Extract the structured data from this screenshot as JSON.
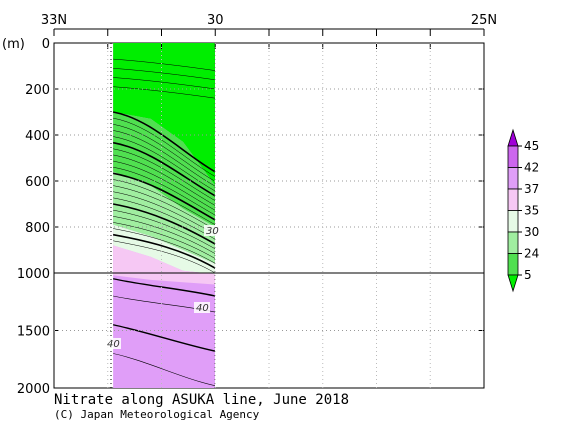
{
  "chart_data": {
    "type": "heatmap",
    "title": "Nitrate along ASUKA line, June 2018",
    "credit": "(C) Japan Meteorological Agency",
    "ylabel": "(m)",
    "xaxis": {
      "ticks": [
        {
          "lat": 33,
          "label": "33N"
        },
        {
          "lat": 30,
          "label": "30"
        },
        {
          "lat": 25,
          "label": "25N"
        }
      ],
      "minor_ticks": [
        33,
        32,
        31,
        30,
        29,
        28,
        27,
        26,
        25
      ],
      "range": [
        33,
        25
      ]
    },
    "yaxis": {
      "upper": {
        "range": [
          0,
          1000
        ],
        "ticks": [
          0,
          200,
          400,
          600,
          800,
          1000
        ]
      },
      "lower": {
        "range": [
          1000,
          2000
        ],
        "ticks": [
          1500,
          2000
        ]
      }
    },
    "section_extent": {
      "lat_start": 31.9,
      "lat_end": 30.0,
      "depth_max": 2000
    },
    "colorbar": {
      "levels": [
        "45",
        "42",
        "37",
        "35",
        "30",
        "24",
        "5"
      ],
      "colors": [
        "#a000d8",
        "#cc66ee",
        "#e09ef8",
        "#f6c8f4",
        "#e6fae6",
        "#a0eea0",
        "#50e050",
        "#00ee00"
      ]
    },
    "contour_labels": [
      "30",
      "40",
      "40"
    ],
    "layers": [
      {
        "range": "< 24",
        "color": "#00ee00",
        "approx_depth_top": 0
      },
      {
        "range": "24-30",
        "color": "#50e050",
        "approx_depth_top": 300
      },
      {
        "range": "30-35",
        "color": "#a0eea0",
        "approx_depth_top": 550
      },
      {
        "range": "35-37",
        "color": "#e6fae6",
        "approx_depth_top": 780
      },
      {
        "range": "37-42",
        "color": "#f6c8f4",
        "approx_depth_top": 880
      },
      {
        "range": "42-45",
        "color": "#e09ef8",
        "approx_depth_top": 1000
      }
    ]
  }
}
